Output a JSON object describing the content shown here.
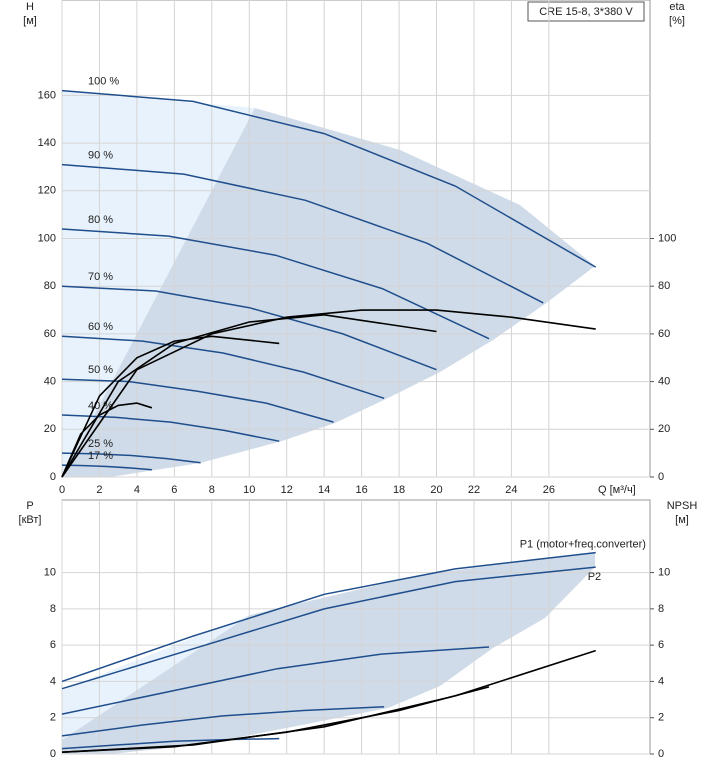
{
  "chart_data": [
    {
      "type": "line",
      "title": "CRE 15-8, 3*380 V",
      "y_label": "H",
      "y_unit": "[м]",
      "y2_label": "eta",
      "y2_unit": "[%]",
      "x_label": "Q [м³/ч]",
      "xlim": [
        0,
        31.4
      ],
      "xticks": [
        0,
        2,
        4,
        6,
        8,
        10,
        12,
        14,
        16,
        18,
        20,
        22,
        24,
        26
      ],
      "ylim": [
        0,
        200
      ],
      "yticks": [
        0,
        20,
        40,
        60,
        80,
        100,
        120,
        140,
        160
      ],
      "y2lim": [
        0,
        200
      ],
      "y2ticks": [
        0,
        20,
        40,
        60,
        80,
        100
      ],
      "grid": true,
      "series": [
        {
          "name": "100 %",
          "color": "#1f4e8c",
          "x": [
            0,
            7,
            14,
            21,
            28.5
          ],
          "values": [
            162,
            157.5,
            144,
            122,
            88
          ]
        },
        {
          "name": "90 %",
          "color": "#1f4e8c",
          "x": [
            0,
            6.5,
            13,
            19.5,
            25.7
          ],
          "values": [
            131,
            127,
            116,
            98,
            73
          ]
        },
        {
          "name": "80 %",
          "color": "#1f4e8c",
          "x": [
            0,
            5.7,
            11.4,
            17.1,
            22.8
          ],
          "values": [
            104,
            101,
            93,
            79,
            58
          ]
        },
        {
          "name": "70 %",
          "color": "#1f4e8c",
          "x": [
            0,
            5,
            10,
            15,
            20
          ],
          "values": [
            80,
            78,
            71,
            60,
            45
          ]
        },
        {
          "name": "60 %",
          "color": "#1f4e8c",
          "x": [
            0,
            4.3,
            8.6,
            12.9,
            17.2
          ],
          "values": [
            59,
            57,
            52,
            44,
            33
          ]
        },
        {
          "name": "50 %",
          "color": "#1f4e8c",
          "x": [
            0,
            3.6,
            7.2,
            10.9,
            14.5
          ],
          "values": [
            41,
            40,
            36,
            31,
            23
          ]
        },
        {
          "name": "40 %",
          "color": "#1f4e8c",
          "x": [
            0,
            2.9,
            5.8,
            8.7,
            11.6
          ],
          "values": [
            26,
            25,
            23,
            19.5,
            15
          ]
        },
        {
          "name": "25 %",
          "color": "#1f4e8c",
          "x": [
            0,
            1.9,
            3.7,
            5.6,
            7.4
          ],
          "values": [
            10,
            9.7,
            9,
            7.7,
            6
          ]
        },
        {
          "name": "17 %",
          "color": "#1f4e8c",
          "x": [
            0,
            1.2,
            2.4,
            3.6,
            4.8
          ],
          "values": [
            5,
            4.8,
            4.4,
            3.8,
            3
          ]
        },
        {
          "axis": "y2",
          "color": "#000000",
          "x": [
            0,
            4,
            8,
            12,
            16,
            20,
            24,
            28.5
          ],
          "values": [
            0,
            45,
            60,
            67,
            70,
            70,
            67,
            62
          ]
        },
        {
          "axis": "y2",
          "color": "#000000",
          "x": [
            0,
            3,
            6,
            10,
            14,
            20
          ],
          "values": [
            0,
            40,
            56,
            65,
            68,
            61
          ]
        },
        {
          "axis": "y2",
          "color": "#000000",
          "x": [
            0,
            2,
            4,
            6,
            8,
            11.6
          ],
          "values": [
            0,
            34,
            50,
            57,
            59,
            56
          ]
        },
        {
          "axis": "y2",
          "color": "#000000",
          "x": [
            0,
            1,
            2,
            3,
            4,
            4.8
          ],
          "values": [
            0,
            18,
            26,
            30,
            31,
            29
          ]
        }
      ]
    },
    {
      "type": "line",
      "y_label": "P",
      "y_unit": "[кВт]",
      "y2_label": "NPSH",
      "y2_unit": "[м]",
      "xlim": [
        0,
        31.4
      ],
      "ylim": [
        0,
        14
      ],
      "yticks": [
        0,
        2,
        4,
        6,
        8,
        10
      ],
      "y2lim": [
        0,
        14
      ],
      "y2ticks": [
        0,
        2,
        4,
        6,
        8,
        10
      ],
      "grid": true,
      "series": [
        {
          "name": "P1 (motor+freq.converter)",
          "color": "#1f4e8c",
          "x": [
            0,
            7,
            14,
            21,
            28.5
          ],
          "values": [
            4,
            6.5,
            8.8,
            10.2,
            11.1
          ]
        },
        {
          "name": "P2",
          "color": "#1f4e8c",
          "x": [
            0,
            7,
            14,
            21,
            28.5
          ],
          "values": [
            3.6,
            5.8,
            8,
            9.5,
            10.3
          ]
        },
        {
          "color": "#1f4e8c",
          "x": [
            0,
            6,
            11.5,
            17,
            22.8
          ],
          "values": [
            2.2,
            3.5,
            4.7,
            5.5,
            5.9
          ]
        },
        {
          "color": "#1f4e8c",
          "x": [
            0,
            4.3,
            8.6,
            12.9,
            17.2
          ],
          "values": [
            1,
            1.6,
            2.1,
            2.4,
            2.6
          ]
        },
        {
          "color": "#1f4e8c",
          "x": [
            0,
            3,
            6,
            9,
            11.6
          ],
          "values": [
            0.3,
            0.5,
            0.7,
            0.8,
            0.85
          ]
        },
        {
          "axis": "y2",
          "color": "#000000",
          "x": [
            0,
            7,
            14,
            21,
            28.5
          ],
          "values": [
            0.1,
            0.5,
            1.5,
            3.2,
            5.7
          ]
        },
        {
          "axis": "y2",
          "color": "#000000",
          "x": [
            0,
            6,
            12,
            18,
            22.8
          ],
          "values": [
            0.1,
            0.4,
            1.2,
            2.4,
            3.7
          ]
        }
      ]
    }
  ]
}
